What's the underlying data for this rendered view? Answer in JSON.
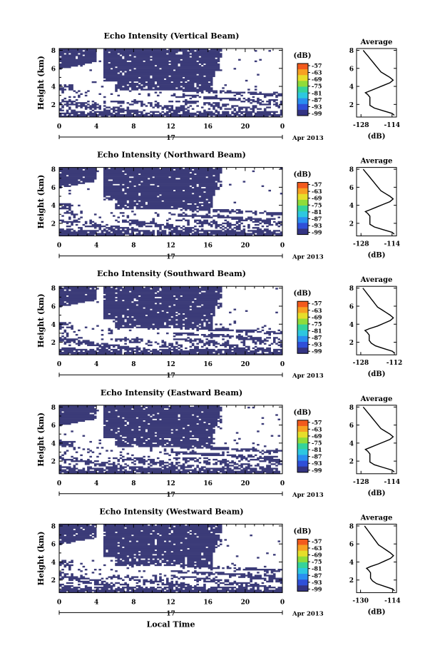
{
  "chart_data": [
    {
      "type": "heatmap",
      "title": "Echo Intensity (Vertical Beam)",
      "ylabel": "Height (km)",
      "x_ticks": [
        "0",
        "4",
        "8",
        "12",
        "16",
        "20",
        "0"
      ],
      "xlim": [
        0,
        24
      ],
      "y_ticks": [
        "2",
        "4",
        "6",
        "8"
      ],
      "ylim": [
        0.6,
        8.2
      ],
      "date_day": "17",
      "date_label": "Apr 2013",
      "colorbar": {
        "label": "(dB)",
        "ticks": [
          "-57",
          "-63",
          "-69",
          "-75",
          "-81",
          "-87",
          "-93",
          "-99"
        ]
      },
      "profile": {
        "title": "Average",
        "xlabel": "(dB)",
        "x_ticks": [
          "-128",
          "-114"
        ],
        "xlim": [
          -130,
          -112
        ],
        "y_ticks": [
          "2",
          "4",
          "6",
          "8"
        ],
        "points": [
          [
            0.8,
            -113
          ],
          [
            1.0,
            -114
          ],
          [
            1.3,
            -118
          ],
          [
            1.6,
            -122
          ],
          [
            1.9,
            -124
          ],
          [
            2.2,
            -124
          ],
          [
            2.5,
            -124
          ],
          [
            2.8,
            -124
          ],
          [
            3.1,
            -125
          ],
          [
            3.3,
            -126
          ],
          [
            3.5,
            -124
          ],
          [
            3.8,
            -121
          ],
          [
            4.1,
            -118
          ],
          [
            4.4,
            -115
          ],
          [
            4.7,
            -113.5
          ],
          [
            5.0,
            -115
          ],
          [
            5.3,
            -117
          ],
          [
            5.6,
            -119
          ],
          [
            5.9,
            -120
          ],
          [
            6.2,
            -121
          ],
          [
            6.5,
            -122
          ],
          [
            6.8,
            -123
          ],
          [
            7.1,
            -124
          ],
          [
            7.4,
            -125
          ],
          [
            7.7,
            -126
          ],
          [
            8.0,
            -127
          ]
        ]
      }
    },
    {
      "type": "heatmap",
      "title": "Echo Intensity (Northward Beam)",
      "ylabel": "Height (km)",
      "x_ticks": [
        "0",
        "4",
        "8",
        "12",
        "16",
        "20",
        "0"
      ],
      "xlim": [
        0,
        24
      ],
      "y_ticks": [
        "2",
        "4",
        "6",
        "8"
      ],
      "ylim": [
        0.6,
        8.2
      ],
      "date_day": "17",
      "date_label": "Apr 2013",
      "colorbar": {
        "label": "(dB)",
        "ticks": [
          "-57",
          "-63",
          "-69",
          "-75",
          "-81",
          "-87",
          "-93",
          "-99"
        ]
      },
      "profile": {
        "title": "Average",
        "xlabel": "(dB)",
        "x_ticks": [
          "-128",
          "-114"
        ],
        "xlim": [
          -130,
          -112
        ],
        "y_ticks": [
          "2",
          "4",
          "6",
          "8"
        ],
        "points": [
          [
            0.8,
            -113
          ],
          [
            1.0,
            -114
          ],
          [
            1.3,
            -118
          ],
          [
            1.6,
            -122
          ],
          [
            1.9,
            -124
          ],
          [
            2.2,
            -124
          ],
          [
            2.5,
            -124
          ],
          [
            2.8,
            -124
          ],
          [
            3.1,
            -125
          ],
          [
            3.3,
            -126
          ],
          [
            3.5,
            -124
          ],
          [
            3.8,
            -121
          ],
          [
            4.1,
            -118
          ],
          [
            4.4,
            -115
          ],
          [
            4.7,
            -113.5
          ],
          [
            5.0,
            -115
          ],
          [
            5.3,
            -117
          ],
          [
            5.6,
            -119
          ],
          [
            5.9,
            -120
          ],
          [
            6.2,
            -121
          ],
          [
            6.5,
            -122
          ],
          [
            6.8,
            -123
          ],
          [
            7.1,
            -124
          ],
          [
            7.4,
            -125
          ],
          [
            7.7,
            -126
          ],
          [
            8.0,
            -127
          ]
        ]
      }
    },
    {
      "type": "heatmap",
      "title": "Echo Intensity (Southward Beam)",
      "ylabel": "Height (km)",
      "x_ticks": [
        "0",
        "4",
        "8",
        "12",
        "16",
        "20",
        "0"
      ],
      "xlim": [
        0,
        24
      ],
      "y_ticks": [
        "2",
        "4",
        "6",
        "8"
      ],
      "ylim": [
        0.6,
        8.2
      ],
      "date_day": "17",
      "date_label": "Apr 2013",
      "colorbar": {
        "label": "(dB)",
        "ticks": [
          "-57",
          "-63",
          "-69",
          "-75",
          "-81",
          "-87",
          "-93",
          "-99"
        ]
      },
      "profile": {
        "title": "Average",
        "xlabel": "(dB)",
        "x_ticks": [
          "-128",
          "-112"
        ],
        "xlim": [
          -130,
          -111
        ],
        "y_ticks": [
          "2",
          "4",
          "6",
          "8"
        ],
        "points": [
          [
            0.8,
            -112
          ],
          [
            1.0,
            -113
          ],
          [
            1.3,
            -117
          ],
          [
            1.6,
            -121
          ],
          [
            1.9,
            -123
          ],
          [
            2.2,
            -124
          ],
          [
            2.5,
            -124
          ],
          [
            2.8,
            -124
          ],
          [
            3.1,
            -125
          ],
          [
            3.3,
            -126
          ],
          [
            3.5,
            -124
          ],
          [
            3.8,
            -120
          ],
          [
            4.1,
            -117
          ],
          [
            4.4,
            -114
          ],
          [
            4.7,
            -112.5
          ],
          [
            5.0,
            -114
          ],
          [
            5.3,
            -116
          ],
          [
            5.6,
            -118
          ],
          [
            5.9,
            -120
          ],
          [
            6.2,
            -121
          ],
          [
            6.5,
            -122
          ],
          [
            6.8,
            -123
          ],
          [
            7.1,
            -124
          ],
          [
            7.4,
            -125
          ],
          [
            7.7,
            -126
          ],
          [
            8.0,
            -127
          ]
        ]
      }
    },
    {
      "type": "heatmap",
      "title": "Echo Intensity (Eastward Beam)",
      "ylabel": "Height (km)",
      "x_ticks": [
        "0",
        "4",
        "8",
        "12",
        "16",
        "20",
        "0"
      ],
      "xlim": [
        0,
        24
      ],
      "y_ticks": [
        "2",
        "4",
        "6",
        "8"
      ],
      "ylim": [
        0.6,
        8.2
      ],
      "date_day": "17",
      "date_label": "Apr 2013",
      "colorbar": {
        "label": "(dB)",
        "ticks": [
          "-57",
          "-63",
          "-69",
          "-75",
          "-81",
          "-87",
          "-93",
          "-99"
        ]
      },
      "profile": {
        "title": "Average",
        "xlabel": "(dB)",
        "x_ticks": [
          "-128",
          "-114"
        ],
        "xlim": [
          -130,
          -112
        ],
        "y_ticks": [
          "2",
          "4",
          "6",
          "8"
        ],
        "points": [
          [
            0.8,
            -113
          ],
          [
            1.0,
            -114
          ],
          [
            1.3,
            -118
          ],
          [
            1.6,
            -122
          ],
          [
            1.9,
            -124
          ],
          [
            2.2,
            -124
          ],
          [
            2.5,
            -124
          ],
          [
            2.8,
            -124
          ],
          [
            3.1,
            -125
          ],
          [
            3.3,
            -126
          ],
          [
            3.5,
            -124
          ],
          [
            3.8,
            -121
          ],
          [
            4.1,
            -118
          ],
          [
            4.4,
            -115
          ],
          [
            4.7,
            -113.5
          ],
          [
            5.0,
            -115
          ],
          [
            5.3,
            -117
          ],
          [
            5.6,
            -119
          ],
          [
            5.9,
            -120
          ],
          [
            6.2,
            -121
          ],
          [
            6.5,
            -122
          ],
          [
            6.8,
            -123
          ],
          [
            7.1,
            -124
          ],
          [
            7.4,
            -125
          ],
          [
            7.7,
            -126
          ],
          [
            8.0,
            -127
          ]
        ]
      }
    },
    {
      "type": "heatmap",
      "title": "Echo Intensity (Westward Beam)",
      "ylabel": "Height (km)",
      "xlabel": "Local Time",
      "x_ticks": [
        "0",
        "4",
        "8",
        "12",
        "16",
        "20",
        "0"
      ],
      "xlim": [
        0,
        24
      ],
      "y_ticks": [
        "2",
        "4",
        "6",
        "8"
      ],
      "ylim": [
        0.6,
        8.2
      ],
      "date_day": "17",
      "date_label": "Apr 2013",
      "colorbar": {
        "label": "(dB)",
        "ticks": [
          "-57",
          "-63",
          "-69",
          "-75",
          "-81",
          "-87",
          "-93",
          "-99"
        ]
      },
      "profile": {
        "title": "Average",
        "xlabel": "(dB)",
        "x_ticks": [
          "-130",
          "-114"
        ],
        "xlim": [
          -132,
          -112
        ],
        "y_ticks": [
          "2",
          "4",
          "6",
          "8"
        ],
        "points": [
          [
            0.8,
            -113
          ],
          [
            1.0,
            -114
          ],
          [
            1.3,
            -118
          ],
          [
            1.6,
            -122
          ],
          [
            1.9,
            -124
          ],
          [
            2.2,
            -125
          ],
          [
            2.5,
            -125
          ],
          [
            2.8,
            -125
          ],
          [
            3.1,
            -126
          ],
          [
            3.3,
            -127
          ],
          [
            3.5,
            -125
          ],
          [
            3.8,
            -121
          ],
          [
            4.1,
            -118
          ],
          [
            4.4,
            -115
          ],
          [
            4.7,
            -113.5
          ],
          [
            5.0,
            -115
          ],
          [
            5.3,
            -117
          ],
          [
            5.6,
            -119
          ],
          [
            5.9,
            -121
          ],
          [
            6.2,
            -122
          ],
          [
            6.5,
            -123
          ],
          [
            6.8,
            -124
          ],
          [
            7.1,
            -125
          ],
          [
            7.4,
            -126
          ],
          [
            7.7,
            -127
          ],
          [
            8.0,
            -128
          ]
        ]
      }
    }
  ]
}
